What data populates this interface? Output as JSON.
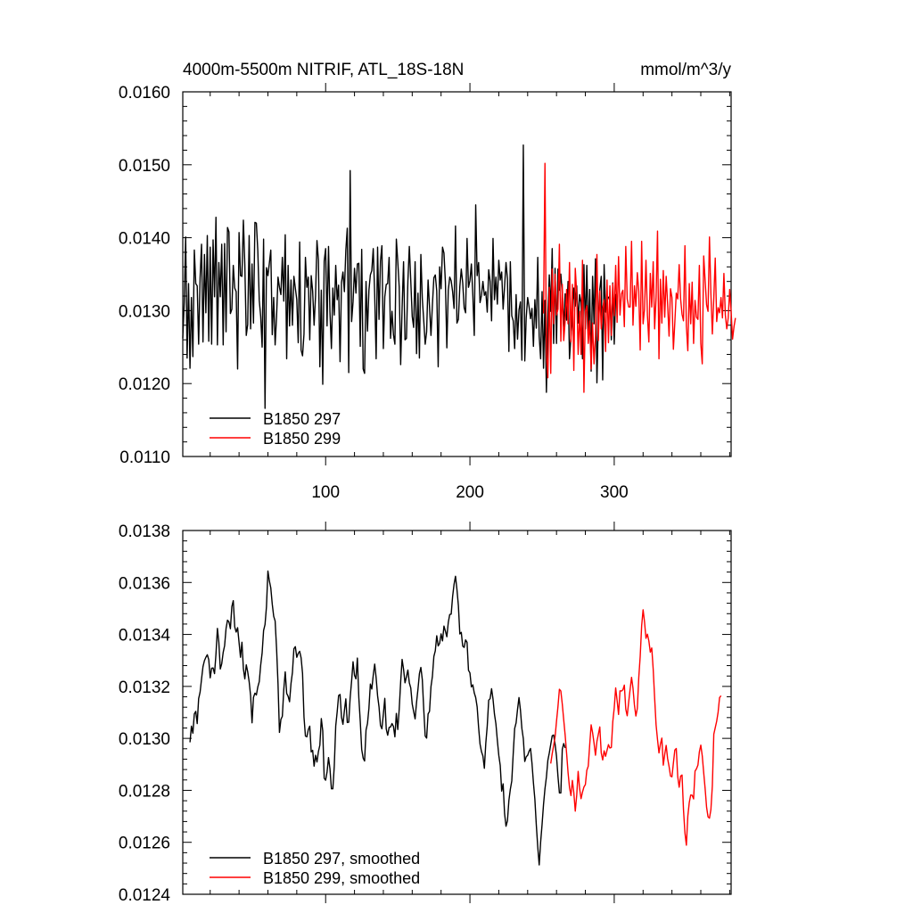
{
  "header": {
    "title": "4000m-5500m NITRIF, ATL_18S-18N",
    "units": "mmol/m^3/y"
  },
  "chart_data": [
    {
      "type": "line",
      "xlim": [
        1,
        381
      ],
      "ylim": [
        0.011,
        0.016
      ],
      "xticks": [
        100,
        200,
        300
      ],
      "xtick_labels": [
        "100",
        "200",
        "300"
      ],
      "yticks": [
        0.011,
        0.012,
        0.013,
        0.014,
        0.015,
        0.016
      ],
      "ytick_labels": [
        "0.0110",
        "0.0120",
        "0.0130",
        "0.0140",
        "0.0150",
        "0.0160"
      ],
      "legend_position": "bottom-left",
      "series": [
        {
          "name": "B1850 297",
          "color": "#000000",
          "x_start": 1,
          "values": [
            0.01262,
            0.01311,
            0.01401,
            0.01235,
            0.01337,
            0.01221,
            0.01318,
            0.01237,
            0.01383,
            0.01337,
            0.01334,
            0.01254,
            0.01345,
            0.01391,
            0.01257,
            0.01377,
            0.01297,
            0.01403,
            0.01258,
            0.01387,
            0.01254,
            0.01397,
            0.01319,
            0.01428,
            0.01253,
            0.01366,
            0.01319,
            0.01391,
            0.01253,
            0.01392,
            0.01271,
            0.01414,
            0.01408,
            0.01296,
            0.01302,
            0.01362,
            0.01331,
            0.01326,
            0.0122,
            0.01407,
            0.01348,
            0.01347,
            0.01424,
            0.01363,
            0.01266,
            0.01281,
            0.01403,
            0.01275,
            0.01364,
            0.01283,
            0.01421,
            0.0142,
            0.01382,
            0.01314,
            0.01292,
            0.0125,
            0.01398,
            0.01166,
            0.01359,
            0.01348,
            0.01365,
            0.01383,
            0.01267,
            0.01318,
            0.01253,
            0.01292,
            0.01346,
            0.01332,
            0.01322,
            0.01373,
            0.01313,
            0.01404,
            0.01234,
            0.01362,
            0.01279,
            0.01342,
            0.0128,
            0.01347,
            0.01331,
            0.01315,
            0.01256,
            0.01394,
            0.01246,
            0.01238,
            0.01268,
            0.01373,
            0.01332,
            0.01346,
            0.0126,
            0.01348,
            0.01327,
            0.0128,
            0.0132,
            0.01396,
            0.01369,
            0.01223,
            0.01328,
            0.01199,
            0.01368,
            0.01385,
            0.01279,
            0.01388,
            0.01298,
            0.01248,
            0.01331,
            0.01294,
            0.01362,
            0.01315,
            0.01335,
            0.0123,
            0.01339,
            0.01353,
            0.01326,
            0.01383,
            0.01413,
            0.01215,
            0.01492,
            0.01285,
            0.01312,
            0.01358,
            0.01324,
            0.01364,
            0.01365,
            0.01251,
            0.01384,
            0.0122,
            0.01214,
            0.0134,
            0.01272,
            0.01328,
            0.01349,
            0.01355,
            0.01385,
            0.01322,
            0.01234,
            0.01387,
            0.01288,
            0.01368,
            0.01389,
            0.01248,
            0.01319,
            0.01336,
            0.01337,
            0.01373,
            0.01262,
            0.01299,
            0.01267,
            0.01254,
            0.01398,
            0.01367,
            0.01332,
            0.01226,
            0.01304,
            0.01367,
            0.0126,
            0.01262,
            0.0134,
            0.01388,
            0.01341,
            0.01292,
            0.01277,
            0.01367,
            0.01241,
            0.01324,
            0.01235,
            0.01377,
            0.01316,
            0.01286,
            0.01254,
            0.01271,
            0.01342,
            0.01305,
            0.01266,
            0.01308,
            0.01345,
            0.01349,
            0.01327,
            0.01223,
            0.0136,
            0.0133,
            0.01387,
            0.01379,
            0.01339,
            0.01249,
            0.01328,
            0.01346,
            0.01341,
            0.01326,
            0.01303,
            0.01416,
            0.01283,
            0.01288,
            0.01333,
            0.01357,
            0.01338,
            0.01304,
            0.01297,
            0.01399,
            0.01332,
            0.01341,
            0.01364,
            0.01322,
            0.01266,
            0.01445,
            0.01348,
            0.01366,
            0.01311,
            0.01321,
            0.0134,
            0.01321,
            0.01326,
            0.01298,
            0.01356,
            0.0134,
            0.01286,
            0.01399,
            0.01315,
            0.01346,
            0.01309,
            0.01369,
            0.01342,
            0.01353,
            0.01302,
            0.01333,
            0.01366,
            0.01344,
            0.01244,
            0.01367,
            0.01293,
            0.01286,
            0.01248,
            0.01322,
            0.01261,
            0.01301,
            0.01312,
            0.01232,
            0.01527,
            0.01231,
            0.0129,
            0.01318,
            0.01305,
            0.01289,
            0.01303,
            0.01251,
            0.01315,
            0.01276,
            0.01373,
            0.01265,
            0.01234,
            0.01326,
            0.01221,
            0.01314,
            0.01188,
            0.01291,
            0.01349,
            0.01299,
            0.01385,
            0.01255,
            0.01358,
            0.01255,
            0.01357,
            0.01328,
            0.0135,
            0.01324,
            0.01278,
            0.01323,
            0.01287,
            0.0134,
            0.01234,
            0.01265,
            0.01288,
            0.01331,
            0.01306,
            0.01334,
            0.01283,
            0.01322,
            0.01311,
            0.01234,
            0.01363,
            0.01275,
            0.01362,
            0.01264,
            0.01329,
            0.01217,
            0.01347,
            0.01282,
            0.01371,
            0.01201,
            0.01288,
            0.01329,
            0.01347,
            0.01205,
            0.01363,
            0.01298,
            0.01313,
            0.01318,
            0.0132,
            0.0126,
            0.01338,
            0.01254,
            0.01323
          ]
        },
        {
          "name": "B1850 299",
          "color": "#ff0000",
          "x_start": 251,
          "values": [
            0.01296,
            0.01502,
            0.01241,
            0.01208,
            0.01332,
            0.01214,
            0.01357,
            0.01282,
            0.0135,
            0.01294,
            0.01302,
            0.01391,
            0.01258,
            0.01336,
            0.01259,
            0.01286,
            0.01329,
            0.01282,
            0.01366,
            0.01257,
            0.01336,
            0.01218,
            0.01358,
            0.01323,
            0.0124,
            0.01299,
            0.0124,
            0.01369,
            0.01188,
            0.01299,
            0.01307,
            0.01255,
            0.01286,
            0.0122,
            0.01283,
            0.01227,
            0.01265,
            0.01377,
            0.01259,
            0.01327,
            0.01275,
            0.01303,
            0.01315,
            0.01244,
            0.01342,
            0.01256,
            0.01334,
            0.01266,
            0.01337,
            0.01293,
            0.01362,
            0.01284,
            0.01374,
            0.01294,
            0.01323,
            0.01328,
            0.01278,
            0.01388,
            0.01316,
            0.01305,
            0.01305,
            0.01395,
            0.0128,
            0.01334,
            0.01306,
            0.01352,
            0.01327,
            0.01246,
            0.01395,
            0.01282,
            0.01302,
            0.01369,
            0.01294,
            0.01257,
            0.01351,
            0.01305,
            0.01367,
            0.01275,
            0.01318,
            0.01409,
            0.01234,
            0.01343,
            0.01283,
            0.01355,
            0.01291,
            0.01347,
            0.01309,
            0.01265,
            0.0133,
            0.01318,
            0.01247,
            0.01284,
            0.01324,
            0.01316,
            0.01363,
            0.01316,
            0.01295,
            0.01286,
            0.01389,
            0.01279,
            0.01245,
            0.01337,
            0.01282,
            0.01339,
            0.01255,
            0.01314,
            0.01291,
            0.01288,
            0.01362,
            0.01255,
            0.01227,
            0.01375,
            0.01341,
            0.01308,
            0.01299,
            0.01401,
            0.01323,
            0.01268,
            0.01317,
            0.01372,
            0.01285,
            0.01304,
            0.01297,
            0.01318,
            0.0129,
            0.01351,
            0.01294,
            0.01275,
            0.0129,
            0.01329,
            0.01299,
            0.01261,
            0.01278,
            0.0129
          ]
        }
      ]
    },
    {
      "type": "line",
      "xlim": [
        1,
        381
      ],
      "ylim": [
        0.0124,
        0.0138
      ],
      "xticks": [
        100,
        200,
        300
      ],
      "yticks": [
        0.0124,
        0.0126,
        0.0128,
        0.013,
        0.0132,
        0.0134,
        0.0136,
        0.0138
      ],
      "ytick_labels": [
        "0.0124",
        "0.0126",
        "0.0128",
        "0.0130",
        "0.0132",
        "0.0134",
        "0.0136",
        "0.0138"
      ],
      "legend_position": "bottom-left",
      "series": [
        {
          "name": "B1850 297, smoothed",
          "color": "#000000",
          "x_start": 6,
          "values": [
            0.012985,
            0.013047,
            0.01302,
            0.013094,
            0.013104,
            0.013057,
            0.013153,
            0.013178,
            0.013228,
            0.013276,
            0.013299,
            0.013312,
            0.013322,
            0.013303,
            0.013233,
            0.01327,
            0.013271,
            0.013249,
            0.013324,
            0.013423,
            0.013369,
            0.013267,
            0.013287,
            0.013331,
            0.013357,
            0.013423,
            0.013455,
            0.013448,
            0.013422,
            0.013507,
            0.01353,
            0.013429,
            0.013409,
            0.013426,
            0.013369,
            0.013312,
            0.01337,
            0.013269,
            0.013229,
            0.013283,
            0.013256,
            0.013218,
            0.013164,
            0.01306,
            0.013158,
            0.013174,
            0.013167,
            0.013198,
            0.013218,
            0.013282,
            0.013329,
            0.013415,
            0.013438,
            0.013507,
            0.013644,
            0.013606,
            0.013579,
            0.013517,
            0.01347,
            0.013452,
            0.013346,
            0.01321,
            0.013023,
            0.013073,
            0.013085,
            0.013188,
            0.013256,
            0.013173,
            0.013162,
            0.013141,
            0.013211,
            0.013254,
            0.013345,
            0.013353,
            0.013312,
            0.013327,
            0.013335,
            0.01331,
            0.01325,
            0.013082,
            0.013009,
            0.013006,
            0.013034,
            0.013047,
            0.012948,
            0.012954,
            0.012893,
            0.012935,
            0.012909,
            0.012949,
            0.012974,
            0.013076,
            0.013029,
            0.012847,
            0.012839,
            0.012871,
            0.012926,
            0.012883,
            0.012806,
            0.012806,
            0.012894,
            0.013048,
            0.013102,
            0.013165,
            0.013169,
            0.013081,
            0.013054,
            0.013106,
            0.013152,
            0.013061,
            0.013062,
            0.013157,
            0.013221,
            0.013295,
            0.013243,
            0.013229,
            0.013309,
            0.013157,
            0.013065,
            0.012957,
            0.012924,
            0.012913,
            0.013032,
            0.013057,
            0.013116,
            0.013209,
            0.01319,
            0.013243,
            0.013286,
            0.013233,
            0.013164,
            0.013121,
            0.01305,
            0.013037,
            0.013093,
            0.013154,
            0.013036,
            0.013012,
            0.013042,
            0.013044,
            0.013057,
            0.013046,
            0.013006,
            0.013096,
            0.013034,
            0.013113,
            0.013218,
            0.013304,
            0.013266,
            0.013214,
            0.013237,
            0.013263,
            0.013214,
            0.013194,
            0.013132,
            0.013103,
            0.013075,
            0.013138,
            0.01319,
            0.013249,
            0.013273,
            0.013226,
            0.013111,
            0.013009,
            0.013001,
            0.013094,
            0.013104,
            0.013199,
            0.013239,
            0.013315,
            0.013337,
            0.013395,
            0.013356,
            0.013366,
            0.013402,
            0.013375,
            0.013432,
            0.013413,
            0.013391,
            0.013446,
            0.013477,
            0.013478,
            0.013546,
            0.013593,
            0.013624,
            0.013573,
            0.013511,
            0.013402,
            0.013408,
            0.013355,
            0.01335,
            0.013379,
            0.01337,
            0.013262,
            0.013252,
            0.013198,
            0.013206,
            0.013175,
            0.013157,
            0.013121,
            0.013043,
            0.012978,
            0.012949,
            0.012932,
            0.012885,
            0.012982,
            0.013048,
            0.013147,
            0.013153,
            0.013191,
            0.013151,
            0.013093,
            0.013056,
            0.012992,
            0.012935,
            0.012896,
            0.012797,
            0.012825,
            0.012711,
            0.012662,
            0.012683,
            0.012761,
            0.012804,
            0.012836,
            0.012941,
            0.013038,
            0.01306,
            0.013112,
            0.013157,
            0.013109,
            0.013038,
            0.012999,
            0.012911,
            0.012929,
            0.012935,
            0.012951,
            0.012961,
            0.012904,
            0.012829,
            0.012766,
            0.012667,
            0.012582,
            0.012513,
            0.012601,
            0.012669,
            0.012746,
            0.012806,
            0.012851,
            0.012915,
            0.012944,
            0.012977,
            0.01301,
            0.013013,
            0.012978,
            0.012931,
            0.012854,
            0.01279,
            0.01279,
            0.012958,
            0.01298,
            0.012963
          ]
        },
        {
          "name": "B1850 299, smoothed",
          "color": "#ff0000",
          "x_start": 256,
          "values": [
            0.012903,
            0.012941,
            0.012972,
            0.013005,
            0.013066,
            0.013122,
            0.013189,
            0.013182,
            0.013132,
            0.013071,
            0.013012,
            0.012942,
            0.012868,
            0.012811,
            0.01278,
            0.012838,
            0.012791,
            0.01272,
            0.012781,
            0.012873,
            0.012807,
            0.012768,
            0.012793,
            0.012813,
            0.012822,
            0.012877,
            0.012893,
            0.012975,
            0.013052,
            0.013022,
            0.012982,
            0.012935,
            0.012988,
            0.013016,
            0.013044,
            0.012944,
            0.012917,
            0.012952,
            0.012931,
            0.012954,
            0.012976,
            0.012963,
            0.012965,
            0.013064,
            0.013117,
            0.013194,
            0.013146,
            0.013092,
            0.013183,
            0.013182,
            0.013187,
            0.013205,
            0.013112,
            0.013087,
            0.013139,
            0.013188,
            0.013235,
            0.013193,
            0.013128,
            0.013086,
            0.013115,
            0.013233,
            0.013316,
            0.013433,
            0.013495,
            0.013448,
            0.013385,
            0.013401,
            0.013375,
            0.013332,
            0.013348,
            0.013266,
            0.013156,
            0.013052,
            0.012995,
            0.012944,
            0.012978,
            0.013001,
            0.012897,
            0.012939,
            0.012973,
            0.012922,
            0.012892,
            0.012855,
            0.012852,
            0.012905,
            0.012955,
            0.012961,
            0.012853,
            0.012812,
            0.012855,
            0.012859,
            0.012725,
            0.012636,
            0.012589,
            0.012701,
            0.012753,
            0.012782,
            0.012781,
            0.012767,
            0.012874,
            0.012883,
            0.012897,
            0.012948,
            0.012974,
            0.012933,
            0.012868,
            0.012806,
            0.012735,
            0.012698,
            0.012693,
            0.012726,
            0.012818,
            0.013016,
            0.013041,
            0.013066,
            0.013101,
            0.013157,
            0.013164
          ]
        }
      ]
    }
  ]
}
